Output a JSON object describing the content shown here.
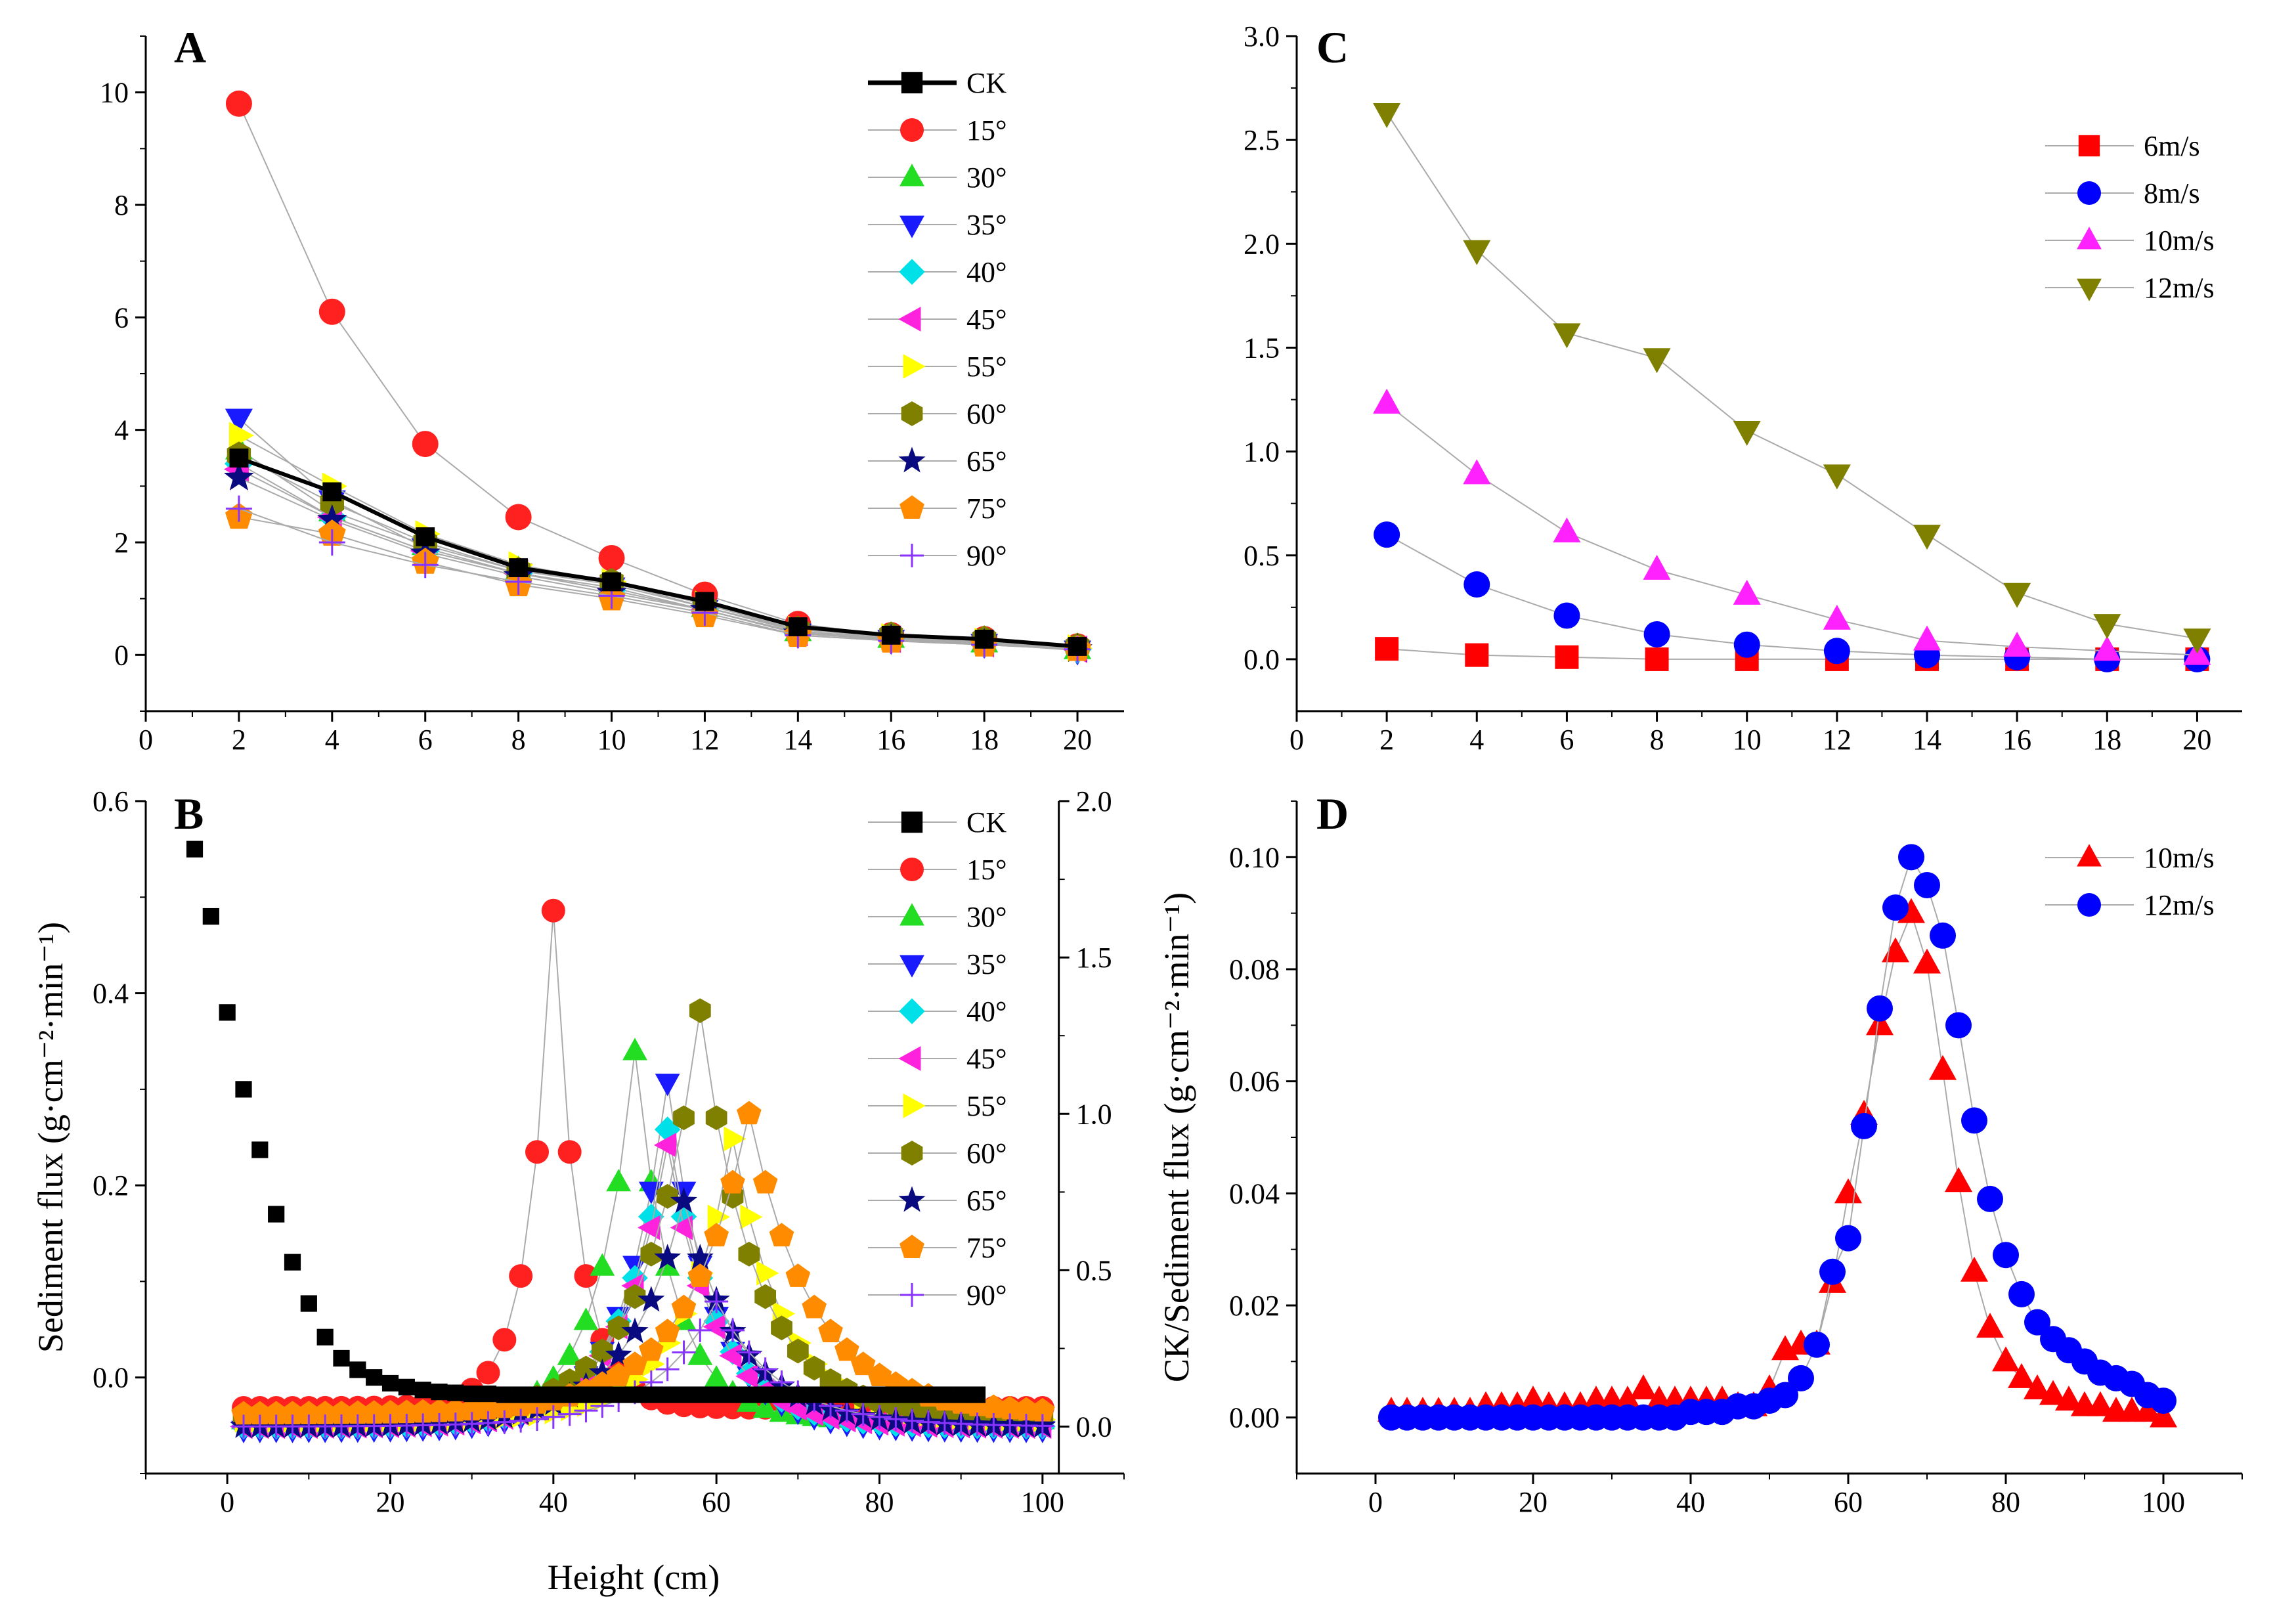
{
  "figure_title": "",
  "chart_data": [
    {
      "panel": "A",
      "type": "scatter",
      "xlabel": "",
      "ylabel": "",
      "xlim": [
        0,
        21
      ],
      "ylim": [
        -1,
        11
      ],
      "xticks": [
        0,
        2,
        4,
        6,
        8,
        10,
        12,
        14,
        16,
        18,
        20
      ],
      "yticks": [
        0,
        2,
        4,
        6,
        8,
        10
      ],
      "legend_position": "top-right",
      "x": [
        2,
        4,
        6,
        8,
        10,
        12,
        14,
        16,
        18,
        20
      ],
      "series": [
        {
          "name": "CK",
          "color": "#000000",
          "marker": "square",
          "line": "thick",
          "values": [
            3.5,
            2.9,
            2.1,
            1.55,
            1.3,
            0.95,
            0.5,
            0.35,
            0.28,
            0.15
          ]
        },
        {
          "name": "15°",
          "color": "#ff2020",
          "marker": "circle",
          "values": [
            9.8,
            6.1,
            3.75,
            2.45,
            1.72,
            1.07,
            0.55,
            0.35,
            0.28,
            0.15
          ]
        },
        {
          "name": "30°",
          "color": "#22dd22",
          "marker": "triangle-up",
          "values": [
            3.65,
            2.55,
            1.95,
            1.5,
            1.25,
            0.85,
            0.42,
            0.3,
            0.22,
            0.1
          ]
        },
        {
          "name": "35°",
          "color": "#1a1aff",
          "marker": "triangle-down",
          "values": [
            4.2,
            2.75,
            1.9,
            1.45,
            1.2,
            0.8,
            0.38,
            0.27,
            0.2,
            0.08
          ]
        },
        {
          "name": "40°",
          "color": "#00e0e8",
          "marker": "diamond",
          "values": [
            3.4,
            2.45,
            1.85,
            1.45,
            1.15,
            0.8,
            0.38,
            0.28,
            0.2,
            0.1
          ]
        },
        {
          "name": "45°",
          "color": "#ff22dd",
          "marker": "triangle-left",
          "values": [
            3.3,
            2.45,
            1.85,
            1.45,
            1.15,
            0.8,
            0.4,
            0.28,
            0.2,
            0.1
          ]
        },
        {
          "name": "55°",
          "color": "#ffff00",
          "marker": "triangle-right",
          "values": [
            3.9,
            3.0,
            2.15,
            1.6,
            1.3,
            0.9,
            0.45,
            0.32,
            0.24,
            0.12
          ]
        },
        {
          "name": "60°",
          "color": "#808000",
          "marker": "hexagon",
          "values": [
            3.55,
            2.7,
            2.0,
            1.5,
            1.3,
            0.85,
            0.45,
            0.35,
            0.28,
            0.15
          ]
        },
        {
          "name": "65°",
          "color": "#0a0a80",
          "marker": "star",
          "values": [
            3.15,
            2.4,
            1.8,
            1.4,
            1.1,
            0.8,
            0.38,
            0.28,
            0.2,
            0.1
          ]
        },
        {
          "name": "75°",
          "color": "#ff8c00",
          "marker": "pentagon",
          "values": [
            2.45,
            2.15,
            1.65,
            1.25,
            1.0,
            0.7,
            0.35,
            0.25,
            0.18,
            0.1
          ]
        },
        {
          "name": "90°",
          "color": "#8833ff",
          "marker": "plus",
          "values": [
            2.6,
            2.0,
            1.6,
            1.3,
            1.05,
            0.75,
            0.35,
            0.25,
            0.18,
            0.1
          ]
        }
      ]
    },
    {
      "panel": "C",
      "type": "scatter",
      "xlabel": "",
      "ylabel": "",
      "xlim": [
        0,
        21
      ],
      "ylim": [
        -0.25,
        3.0
      ],
      "xticks": [
        0,
        2,
        4,
        6,
        8,
        10,
        12,
        14,
        16,
        18,
        20
      ],
      "yticks": [
        0.0,
        0.5,
        1.0,
        1.5,
        2.0,
        2.5,
        3.0
      ],
      "legend_position": "top-right",
      "x": [
        2,
        4,
        6,
        8,
        10,
        12,
        14,
        16,
        18,
        20
      ],
      "series": [
        {
          "name": "6m/s",
          "color": "#ff0000",
          "marker": "square",
          "values": [
            0.05,
            0.02,
            0.01,
            0.0,
            0.0,
            0.0,
            0.0,
            0.0,
            0.0,
            0.0
          ]
        },
        {
          "name": "8m/s",
          "color": "#0000ff",
          "marker": "circle",
          "values": [
            0.6,
            0.36,
            0.21,
            0.12,
            0.07,
            0.04,
            0.02,
            0.01,
            0.0,
            0.0
          ]
        },
        {
          "name": "10m/s",
          "color": "#ff22ff",
          "marker": "triangle-up",
          "values": [
            1.23,
            0.89,
            0.61,
            0.43,
            0.31,
            0.19,
            0.09,
            0.06,
            0.04,
            0.02
          ]
        },
        {
          "name": "12m/s",
          "color": "#808000",
          "marker": "triangle-down",
          "values": [
            2.63,
            1.97,
            1.57,
            1.45,
            1.1,
            0.89,
            0.6,
            0.32,
            0.17,
            0.1
          ]
        }
      ]
    },
    {
      "panel": "B",
      "type": "scatter",
      "xlabel": "Height (cm)",
      "ylabel": "Sediment flux (g·cm⁻²·min⁻¹)",
      "xlim": [
        -10,
        110
      ],
      "ylim": [
        -0.1,
        0.6
      ],
      "y2lim": [
        -0.15,
        2.0
      ],
      "xticks": [
        0,
        20,
        40,
        60,
        80,
        100
      ],
      "yticks": [
        0.0,
        0.2,
        0.4,
        0.6
      ],
      "y2ticks": [
        0.0,
        0.5,
        1.0,
        1.5,
        2.0
      ],
      "legend_position": "top-right",
      "series": [
        {
          "name": "CK",
          "color": "#000000",
          "marker": "square",
          "axis": "left",
          "x": [
            -4,
            -2,
            0,
            2,
            4,
            6,
            8,
            10,
            12,
            14,
            16,
            18,
            20,
            22,
            24,
            26,
            28,
            30,
            32,
            34,
            36,
            38,
            40,
            42,
            44,
            46,
            48,
            50,
            52,
            54,
            56,
            58,
            60,
            62,
            64,
            66,
            68,
            70,
            72,
            74,
            76,
            78,
            80,
            82,
            84,
            86,
            88,
            90,
            92
          ],
          "values": [
            0.55,
            0.48,
            0.38,
            0.3,
            0.237,
            0.17,
            0.12,
            0.077,
            0.042,
            0.02,
            0.008,
            0.0,
            -0.006,
            -0.01,
            -0.013,
            -0.015,
            -0.016,
            -0.017,
            -0.017,
            -0.018,
            -0.018,
            -0.018,
            -0.018,
            -0.018,
            -0.018,
            -0.018,
            -0.018,
            -0.018,
            -0.018,
            -0.018,
            -0.018,
            -0.018,
            -0.018,
            -0.018,
            -0.018,
            -0.018,
            -0.018,
            -0.018,
            -0.018,
            -0.018,
            -0.018,
            -0.018,
            -0.018,
            -0.018,
            -0.018,
            -0.018,
            -0.018,
            -0.018,
            -0.018
          ]
        },
        {
          "name": "15°",
          "color": "#ff2020",
          "marker": "circle",
          "axis": "right",
          "peak_x": 40,
          "peak": 1.65,
          "values_summary": "x 2-100 step 2, peak 1.65 at 40"
        },
        {
          "name": "30°",
          "color": "#22dd22",
          "marker": "triangle-up",
          "axis": "right",
          "peak_x": 50,
          "peak": 1.2
        },
        {
          "name": "35°",
          "color": "#1a1aff",
          "marker": "triangle-down",
          "axis": "right",
          "peak_x": 54,
          "peak": 1.1
        },
        {
          "name": "40°",
          "color": "#00e0e8",
          "marker": "diamond",
          "axis": "right",
          "peak_x": 54,
          "peak": 0.95
        },
        {
          "name": "45°",
          "color": "#ff22dd",
          "marker": "triangle-left",
          "axis": "right",
          "peak_x": 54,
          "peak": 0.9
        },
        {
          "name": "55°",
          "color": "#ffff00",
          "marker": "triangle-right",
          "axis": "right",
          "peak_x": 62,
          "peak": 0.92
        },
        {
          "name": "60°",
          "color": "#808000",
          "marker": "hexagon",
          "axis": "right",
          "peak_x": 58,
          "peak": 1.33
        },
        {
          "name": "65°",
          "color": "#0a0a80",
          "marker": "star",
          "axis": "right",
          "peak_x": 56,
          "peak": 0.72
        },
        {
          "name": "75°",
          "color": "#ff8c00",
          "marker": "pentagon",
          "axis": "right",
          "peak_x": 64,
          "peak": 1.0
        },
        {
          "name": "90°",
          "color": "#8833ff",
          "marker": "plus",
          "axis": "right",
          "peak_x": 60,
          "peak": 0.4
        }
      ]
    },
    {
      "panel": "D",
      "type": "scatter",
      "xlabel": "",
      "ylabel": "CK/Sediment flux (g·cm⁻²·min⁻¹)",
      "xlim": [
        -10,
        110
      ],
      "ylim": [
        -0.01,
        0.11
      ],
      "xticks": [
        0,
        20,
        40,
        60,
        80,
        100
      ],
      "yticks": [
        0.0,
        0.02,
        0.04,
        0.06,
        0.08,
        0.1
      ],
      "legend_position": "top-right",
      "x": [
        2,
        4,
        6,
        8,
        10,
        12,
        14,
        16,
        18,
        20,
        22,
        24,
        26,
        28,
        30,
        32,
        34,
        36,
        38,
        40,
        42,
        44,
        46,
        48,
        50,
        52,
        54,
        56,
        58,
        60,
        62,
        64,
        66,
        68,
        70,
        72,
        74,
        76,
        78,
        80,
        82,
        84,
        86,
        88,
        90,
        92,
        94,
        96,
        98,
        100
      ],
      "series": [
        {
          "name": "10m/s",
          "color": "#ff0000",
          "marker": "triangle-up",
          "values": [
            0.001,
            0.001,
            0.001,
            0.001,
            0.001,
            0.001,
            0.002,
            0.002,
            0.002,
            0.003,
            0.002,
            0.002,
            0.002,
            0.003,
            0.003,
            0.003,
            0.005,
            0.003,
            0.003,
            0.003,
            0.003,
            0.003,
            0.002,
            0.002,
            0.005,
            0.012,
            0.013,
            0.013,
            0.024,
            0.04,
            0.054,
            0.07,
            0.083,
            0.09,
            0.081,
            0.062,
            0.042,
            0.026,
            0.016,
            0.01,
            0.007,
            0.005,
            0.004,
            0.003,
            0.002,
            0.002,
            0.001,
            0.001,
            0.001,
            0.0
          ]
        },
        {
          "name": "12m/s",
          "color": "#0000ff",
          "marker": "circle",
          "values": [
            0.0,
            0.0,
            0.0,
            0.0,
            0.0,
            0.0,
            0.0,
            0.0,
            0.0,
            0.0,
            0.0,
            0.0,
            0.0,
            0.0,
            0.0,
            0.0,
            0.0,
            0.0,
            0.0,
            0.001,
            0.001,
            0.001,
            0.002,
            0.002,
            0.003,
            0.004,
            0.007,
            0.013,
            0.026,
            0.032,
            0.052,
            0.073,
            0.091,
            0.1,
            0.095,
            0.086,
            0.07,
            0.053,
            0.039,
            0.029,
            0.022,
            0.017,
            0.014,
            0.012,
            0.01,
            0.008,
            0.007,
            0.006,
            0.004,
            0.003
          ]
        }
      ]
    }
  ]
}
